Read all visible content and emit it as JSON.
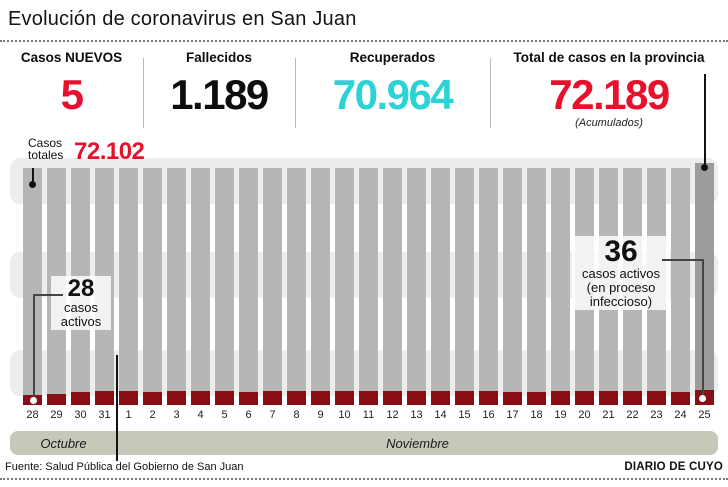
{
  "header": {
    "title": "Evolución de coronavirus en San Juan"
  },
  "stats": {
    "nuevos": {
      "label": "Casos NUEVOS",
      "value": "5"
    },
    "fallecidos": {
      "label": "Fallecidos",
      "value": "1.189"
    },
    "recuperados": {
      "label": "Recuperados",
      "value": "70.964"
    },
    "total": {
      "label": "Total de casos en la provincia",
      "value": "72.189",
      "note": "(Acumulados)"
    }
  },
  "chart_data": {
    "type": "bar",
    "title": "Evolución de coronavirus en San Juan",
    "categories": [
      "28",
      "29",
      "30",
      "31",
      "1",
      "2",
      "3",
      "4",
      "5",
      "6",
      "7",
      "8",
      "9",
      "10",
      "11",
      "12",
      "13",
      "14",
      "15",
      "16",
      "17",
      "18",
      "19",
      "20",
      "21",
      "22",
      "23",
      "24",
      "25"
    ],
    "months": [
      {
        "label": "Octubre",
        "days": 4
      },
      {
        "label": "Noviembre",
        "days": 25
      }
    ],
    "series": [
      {
        "name": "Casos totales",
        "labeled_first": 72102,
        "labeled_last": 72189,
        "note": "all bars drawn full height"
      },
      {
        "name": "Casos activos",
        "estimated": true,
        "values": [
          28,
          30,
          32,
          35,
          34,
          33,
          34,
          35,
          34,
          33,
          34,
          35,
          34,
          34,
          35,
          34,
          34,
          34,
          35,
          34,
          33,
          32,
          35,
          34,
          34,
          34,
          35,
          33,
          36
        ]
      }
    ],
    "annotations": {
      "casos_totales": {
        "label_line1": "Casos",
        "label_line2": "totales",
        "value": "72.102"
      },
      "start_active": {
        "value": "28",
        "lines": [
          "casos",
          "activos"
        ]
      },
      "end_active": {
        "value": "36",
        "lines": [
          "casos activos",
          "(en proceso",
          "infeccioso)"
        ]
      }
    },
    "colors": {
      "accent_red": "#e8112d",
      "recovered_cyan": "#2bd2d6",
      "bar_gray": "#b6b6b6",
      "bar_gray_highlight": "#9c9c9c",
      "active_maroon": "#8a0f14",
      "band_gray": "#ededed",
      "month_band": "#c6c8ba"
    },
    "ylim": [
      0,
      72189
    ],
    "grid": "horizontal light bands",
    "legend": "none"
  },
  "footer": {
    "source": "Fuente: Salud Pública del Gobierno de San Juan",
    "brand": "DIARIO DE CUYO"
  }
}
